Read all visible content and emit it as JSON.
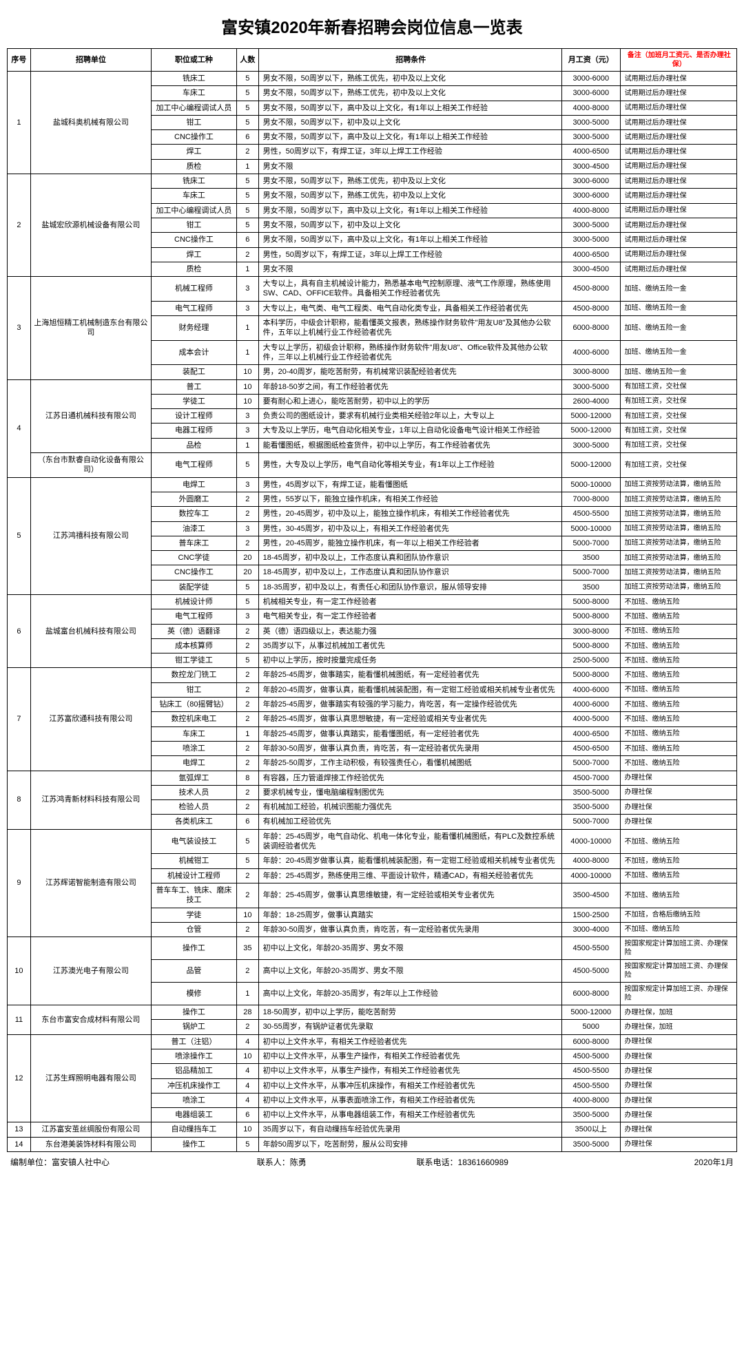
{
  "title": "富安镇2020年新春招聘会岗位信息一览表",
  "headers": {
    "seq": "序号",
    "company": "招聘单位",
    "job": "职位或工种",
    "count": "人数",
    "req": "招聘条件",
    "salary": "月工资（元）",
    "note": "备注（加班月工资元、是否办理社保）"
  },
  "footer": {
    "org": "编制单位：富安镇人社中心",
    "contact": "联系人：陈勇",
    "phone": "联系电话：18361660989",
    "date": "2020年1月"
  },
  "groups": [
    {
      "seq": "1",
      "company": "盐城科奥机械有限公司",
      "rows": [
        {
          "job": "铣床工",
          "count": "5",
          "req": "男女不限，50周岁以下，熟练工优先，初中及以上文化",
          "salary": "3000-6000",
          "note": "试用期过后办理社保"
        },
        {
          "job": "车床工",
          "count": "5",
          "req": "男女不限，50周岁以下，熟练工优先，初中及以上文化",
          "salary": "3000-6000",
          "note": "试用期过后办理社保"
        },
        {
          "job": "加工中心编程调试人员",
          "count": "5",
          "req": "男女不限，50周岁以下，高中及以上文化，有1年以上相关工作经验",
          "salary": "4000-8000",
          "note": "试用期过后办理社保"
        },
        {
          "job": "钳工",
          "count": "5",
          "req": "男女不限，50周岁以下，初中及以上文化",
          "salary": "3000-5000",
          "note": "试用期过后办理社保"
        },
        {
          "job": "CNC操作工",
          "count": "6",
          "req": "男女不限，50周岁以下，高中及以上文化，有1年以上相关工作经验",
          "salary": "3000-5000",
          "note": "试用期过后办理社保"
        },
        {
          "job": "焊工",
          "count": "2",
          "req": "男性，50周岁以下，有焊工证，3年以上焊工工作经验",
          "salary": "4000-6500",
          "note": "试用期过后办理社保"
        },
        {
          "job": "质检",
          "count": "1",
          "req": "男女不限",
          "salary": "3000-4500",
          "note": "试用期过后办理社保"
        }
      ]
    },
    {
      "seq": "2",
      "company": "盐城宏欣源机械设备有限公司",
      "rows": [
        {
          "job": "铣床工",
          "count": "5",
          "req": "男女不限，50周岁以下，熟练工优先，初中及以上文化",
          "salary": "3000-6000",
          "note": "试用期过后办理社保"
        },
        {
          "job": "车床工",
          "count": "5",
          "req": "男女不限，50周岁以下，熟练工优先，初中及以上文化",
          "salary": "3000-6000",
          "note": "试用期过后办理社保"
        },
        {
          "job": "加工中心编程调试人员",
          "count": "5",
          "req": "男女不限，50周岁以下，高中及以上文化，有1年以上相关工作经验",
          "salary": "4000-8000",
          "note": "试用期过后办理社保"
        },
        {
          "job": "钳工",
          "count": "5",
          "req": "男女不限，50周岁以下，初中及以上文化",
          "salary": "3000-5000",
          "note": "试用期过后办理社保"
        },
        {
          "job": "CNC操作工",
          "count": "6",
          "req": "男女不限，50周岁以下，高中及以上文化，有1年以上相关工作经验",
          "salary": "3000-5000",
          "note": "试用期过后办理社保"
        },
        {
          "job": "焊工",
          "count": "2",
          "req": "男性，50周岁以下，有焊工证，3年以上焊工工作经验",
          "salary": "4000-6500",
          "note": "试用期过后办理社保"
        },
        {
          "job": "质检",
          "count": "1",
          "req": "男女不限",
          "salary": "3000-4500",
          "note": "试用期过后办理社保"
        }
      ]
    },
    {
      "seq": "3",
      "company": "上海旭恒精工机械制造东台有限公司",
      "rows": [
        {
          "job": "机械工程师",
          "count": "3",
          "req": "大专以上，具有自主机械设计能力，熟悉基本电气控制原理、液气工作原理，熟练使用SW、CAD、OFFICE软件。具备相关工作经验者优先",
          "salary": "4500-8000",
          "note": "加班、缴纳五险一金"
        },
        {
          "job": "电气工程师",
          "count": "3",
          "req": "大专以上，电气类、电气工程类、电气自动化类专业，具备相关工作经验者优先",
          "salary": "4500-8000",
          "note": "加班、缴纳五险一金"
        },
        {
          "job": "财务经理",
          "count": "1",
          "req": "本科学历，中级会计职称，能看懂英文报表，熟练操作财务软件\"用友U8\"及其他办公软件，五年以上机械行业工作经验者优先",
          "salary": "6000-8000",
          "note": "加班、缴纳五险一金"
        },
        {
          "job": "成本会计",
          "count": "1",
          "req": "大专以上学历，初级会计职称，熟练操作财务软件\"用友U8\"、Office软件及其他办公软件，三年以上机械行业工作经验者优先",
          "salary": "4000-6000",
          "note": "加班、缴纳五险一金"
        },
        {
          "job": "装配工",
          "count": "10",
          "req": "男，20-40周岁，能吃苦耐劳，有机械常识装配经验者优先",
          "salary": "3000-8000",
          "note": "加班、缴纳五险一金"
        }
      ]
    },
    {
      "seq": "4",
      "company": "江苏日通机械科技有限公司",
      "subCompany": "（东台市默睿自动化设备有限公司）",
      "rows": [
        {
          "job": "普工",
          "count": "10",
          "req": "年龄18-50岁之间，有工作经验者优先",
          "salary": "3000-5000",
          "note": "有加班工资，交社保"
        },
        {
          "job": "学徒工",
          "count": "10",
          "req": "要有耐心和上进心，能吃苦耐劳，初中以上的学历",
          "salary": "2600-4000",
          "note": "有加班工资，交社保"
        },
        {
          "job": "设计工程师",
          "count": "3",
          "req": "负责公司的图纸设计，要求有机械行业类相关经验2年以上，大专以上",
          "salary": "5000-12000",
          "note": "有加班工资，交社保"
        },
        {
          "job": "电器工程师",
          "count": "3",
          "req": "大专及以上学历，电气自动化相关专业，1年以上自动化设备电气设计相关工作经验",
          "salary": "5000-12000",
          "note": "有加班工资，交社保"
        },
        {
          "job": "品检",
          "count": "1",
          "req": "能看懂图纸，根据图纸检查货件，初中以上学历，有工作经验者优先",
          "salary": "3000-5000",
          "note": "有加班工资，交社保"
        },
        {
          "job": "电气工程师",
          "count": "5",
          "req": "男性，大专及以上学历，电气自动化等相关专业，有1年以上工作经验",
          "salary": "5000-12000",
          "note": "有加班工资，交社保"
        }
      ]
    },
    {
      "seq": "5",
      "company": "江苏鸿禧科技有限公司",
      "rows": [
        {
          "job": "电焊工",
          "count": "3",
          "req": "男性，45周岁以下，有焊工证，能看懂图纸",
          "salary": "5000-10000",
          "note": "加班工资按劳动法算，缴纳五险"
        },
        {
          "job": "外圆磨工",
          "count": "2",
          "req": "男性，55岁以下，能独立操作机床，有相关工作经验",
          "salary": "7000-8000",
          "note": "加班工资按劳动法算，缴纳五险"
        },
        {
          "job": "数控车工",
          "count": "2",
          "req": "男性，20-45周岁，初中及以上，能独立操作机床，有相关工作经验者优先",
          "salary": "4500-5500",
          "note": "加班工资按劳动法算，缴纳五险"
        },
        {
          "job": "油漆工",
          "count": "3",
          "req": "男性，30-45周岁，初中及以上，有相关工作经验者优先",
          "salary": "5000-10000",
          "note": "加班工资按劳动法算，缴纳五险"
        },
        {
          "job": "普车床工",
          "count": "2",
          "req": "男性，20-45周岁，能独立操作机床，有一年以上相关工作经验者",
          "salary": "5000-7000",
          "note": "加班工资按劳动法算，缴纳五险"
        },
        {
          "job": "CNC学徒",
          "count": "20",
          "req": "18-45周岁，初中及以上，工作态度认真和团队协作意识",
          "salary": "3500",
          "note": "加班工资按劳动法算，缴纳五险"
        },
        {
          "job": "CNC操作工",
          "count": "20",
          "req": "18-45周岁，初中及以上，工作态度认真和团队协作意识",
          "salary": "5000-7000",
          "note": "加班工资按劳动法算，缴纳五险"
        },
        {
          "job": "装配学徒",
          "count": "5",
          "req": "18-35周岁，初中及以上，有责任心和团队协作意识，服从领导安排",
          "salary": "3500",
          "note": "加班工资按劳动法算，缴纳五险"
        }
      ]
    },
    {
      "seq": "6",
      "company": "盐城富台机械科技有限公司",
      "rows": [
        {
          "job": "机械设计师",
          "count": "5",
          "req": "机械相关专业，有一定工作经验者",
          "salary": "5000-8000",
          "note": "不加班、缴纳五险"
        },
        {
          "job": "电气工程师",
          "count": "3",
          "req": "电气相关专业，有一定工作经验者",
          "salary": "5000-8000",
          "note": "不加班、缴纳五险"
        },
        {
          "job": "英（德）语翻译",
          "count": "2",
          "req": "英（德）语四级以上，表达能力强",
          "salary": "3000-8000",
          "note": "不加班、缴纳五险"
        },
        {
          "job": "成本核算师",
          "count": "2",
          "req": "35周岁以下，从事过机械加工者优先",
          "salary": "5000-8000",
          "note": "不加班、缴纳五险"
        },
        {
          "job": "钳工学徒工",
          "count": "5",
          "req": "初中以上学历，按时按量完成任务",
          "salary": "2500-5000",
          "note": "不加班、缴纳五险"
        }
      ]
    },
    {
      "seq": "7",
      "company": "江苏富欣通科技有限公司",
      "rows": [
        {
          "job": "数控龙门铣工",
          "count": "2",
          "req": "年龄25-45周岁，做事踏实，能看懂机械图纸，有一定经验者优先",
          "salary": "5000-8000",
          "note": "不加班、缴纳五险"
        },
        {
          "job": "钳工",
          "count": "2",
          "req": "年龄20-45周岁，做事认真，能看懂机械装配图，有一定钳工经验或相关机械专业者优先",
          "salary": "4000-6000",
          "note": "不加班、缴纳五险"
        },
        {
          "job": "钻床工（80摇臂钻）",
          "count": "2",
          "req": "年龄25-45周岁，做事踏实有较强的学习能力，肯吃苦，有一定操作经验优先",
          "salary": "4000-6000",
          "note": "不加班、缴纳五险"
        },
        {
          "job": "数控机床电工",
          "count": "2",
          "req": "年龄25-45周岁，做事认真思想敏捷，有一定经验或相关专业者优先",
          "salary": "4000-5000",
          "note": "不加班、缴纳五险"
        },
        {
          "job": "车床工",
          "count": "1",
          "req": "年龄25-45周岁，做事认真踏实，能看懂图纸，有一定经验者优先",
          "salary": "4000-6500",
          "note": "不加班、缴纳五险"
        },
        {
          "job": "喷涂工",
          "count": "2",
          "req": "年龄30-50周岁，做事认真负责，肯吃苦，有一定经验者优先录用",
          "salary": "4500-6500",
          "note": "不加班、缴纳五险"
        },
        {
          "job": "电焊工",
          "count": "2",
          "req": "年龄25-50周岁，工作主动积极，有较强责任心，看懂机械图纸",
          "salary": "5000-7000",
          "note": "不加班、缴纳五险"
        }
      ]
    },
    {
      "seq": "8",
      "company": "江苏鸿青新材料科技有限公司",
      "rows": [
        {
          "job": "氩弧焊工",
          "count": "8",
          "req": "有容器，压力管道焊接工作经验优先",
          "salary": "4500-7000",
          "note": "办理社保"
        },
        {
          "job": "技术人员",
          "count": "2",
          "req": "要求机械专业，懂电脑编程制图优先",
          "salary": "3500-5000",
          "note": "办理社保"
        },
        {
          "job": "检验人员",
          "count": "2",
          "req": "有机械加工经验，机械识图能力强优先",
          "salary": "3500-5000",
          "note": "办理社保"
        },
        {
          "job": "各类机床工",
          "count": "6",
          "req": "有机械加工经验优先",
          "salary": "5000-7000",
          "note": "办理社保"
        }
      ]
    },
    {
      "seq": "9",
      "company": "江苏辉诺智能制造有限公司",
      "rows": [
        {
          "job": "电气装设技工",
          "count": "5",
          "req": "年龄：25-45周岁，电气自动化、机电一体化专业，能看懂机械图纸，有PLC及数控系统装调经验者优先",
          "salary": "4000-10000",
          "note": "不加班、缴纳五险"
        },
        {
          "job": "机械钳工",
          "count": "5",
          "req": "年龄：20-45周岁做事认真，能看懂机械装配图，有一定钳工经验或相关机械专业者优先",
          "salary": "4000-8000",
          "note": "不加班，缴纳五险"
        },
        {
          "job": "机械设计工程师",
          "count": "2",
          "req": "年龄：25-45周岁，熟练使用三维、平面设计软件，精通CAD，有相关经验者优先",
          "salary": "4000-10000",
          "note": "不加班、缴纳五险"
        },
        {
          "job": "普车车工、铣床、磨床技工",
          "count": "2",
          "req": "年龄：25-45周岁，做事认真思维敏捷，有一定经验或相关专业者优先",
          "salary": "3500-4500",
          "note": "不加班、缴纳五险"
        },
        {
          "job": "学徒",
          "count": "10",
          "req": "年龄：18-25周岁，做事认真踏实",
          "salary": "1500-2500",
          "note": "不加班，合格后缴纳五险"
        },
        {
          "job": "仓管",
          "count": "2",
          "req": "年龄30-50周岁，做事认真负责，肯吃苦，有一定经验者优先录用",
          "salary": "3000-4000",
          "note": "不加班、缴纳五险"
        }
      ]
    },
    {
      "seq": "10",
      "company": "江苏澳光电子有限公司",
      "rows": [
        {
          "job": "操作工",
          "count": "35",
          "req": "初中以上文化，年龄20-35周岁、男女不限",
          "salary": "4500-5500",
          "note": "按国家规定计算加班工资、办理保险"
        },
        {
          "job": "品管",
          "count": "2",
          "req": "高中以上文化，年龄20-35周岁、男女不限",
          "salary": "4500-5000",
          "note": "按国家规定计算加班工资、办理保险"
        },
        {
          "job": "模修",
          "count": "1",
          "req": "高中以上文化，年龄20-35周岁，有2年以上工作经验",
          "salary": "6000-8000",
          "note": "按国家规定计算加班工资、办理保险"
        }
      ]
    },
    {
      "seq": "11",
      "company": "东台市富安合成材料有限公司",
      "rows": [
        {
          "job": "操作工",
          "count": "28",
          "req": "18-50周岁，初中以上学历，能吃苦耐劳",
          "salary": "5000-12000",
          "note": "办理社保，加班"
        },
        {
          "job": "锅炉工",
          "count": "2",
          "req": "30-55周岁，有锅炉证者优先录取",
          "salary": "5000",
          "note": "办理社保，加班"
        }
      ]
    },
    {
      "seq": "12",
      "company": "江苏生辉照明电器有限公司",
      "rows": [
        {
          "job": "普工（注铝）",
          "count": "4",
          "req": "初中以上文件水平，有相关工作经验者优先",
          "salary": "6000-8000",
          "note": "办理社保"
        },
        {
          "job": "喷涂操作工",
          "count": "10",
          "req": "初中以上文件水平，从事生产操作，有相关工作经验者优先",
          "salary": "4500-5000",
          "note": "办理社保"
        },
        {
          "job": "铝品精加工",
          "count": "4",
          "req": "初中以上文件水平，从事生产操作，有相关工作经验者优先",
          "salary": "4500-5500",
          "note": "办理社保"
        },
        {
          "job": "冲压机床操作工",
          "count": "4",
          "req": "初中以上文件水平，从事冲压机床操作，有相关工作经验者优先",
          "salary": "4500-5500",
          "note": "办理社保"
        },
        {
          "job": "喷涂工",
          "count": "4",
          "req": "初中以上文件水平，从事表面喷涂工作，有相关工作经验者优先",
          "salary": "4000-8000",
          "note": "办理社保"
        },
        {
          "job": "电器组装工",
          "count": "6",
          "req": "初中以上文件水平，从事电器组装工作，有相关工作经验者优先",
          "salary": "3500-5000",
          "note": "办理社保"
        }
      ]
    },
    {
      "seq": "13",
      "company": "江苏富安茧丝绸股份有限公司",
      "rows": [
        {
          "job": "自动缫挡车工",
          "count": "10",
          "req": "35周岁以下，有自动缫挡车经验优先录用",
          "salary": "3500以上",
          "note": "办理社保"
        }
      ]
    },
    {
      "seq": "14",
      "company": "东台港美装饰材料有限公司",
      "rows": [
        {
          "job": "操作工",
          "count": "5",
          "req": "年龄50周岁以下，吃苦耐劳，服从公司安排",
          "salary": "3500-5000",
          "note": "办理社保"
        }
      ]
    }
  ]
}
